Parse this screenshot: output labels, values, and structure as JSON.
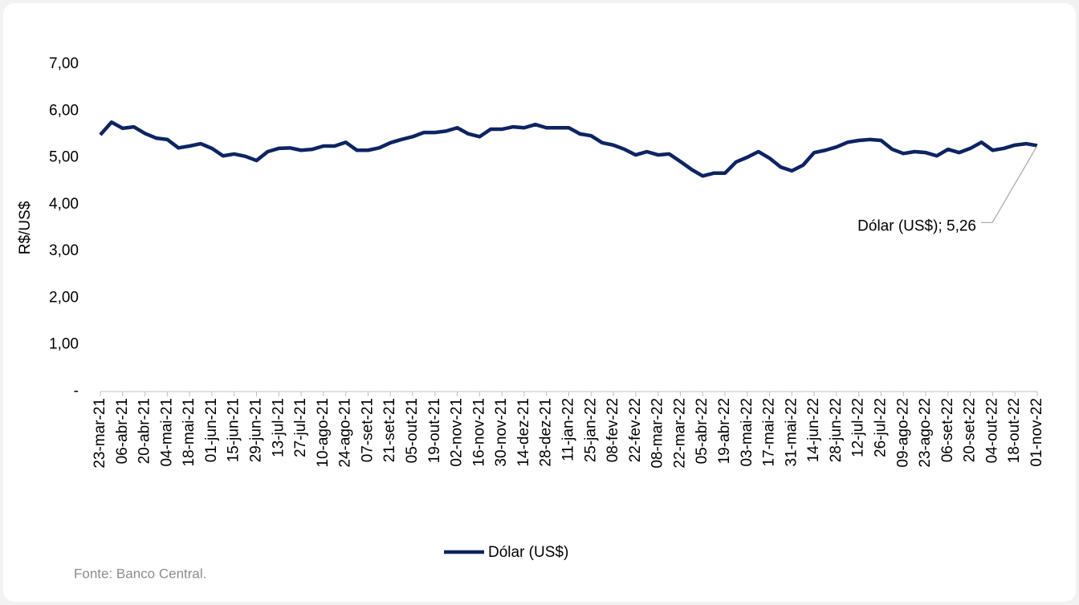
{
  "chart_data": {
    "type": "line",
    "y_label": "R$/US$",
    "source": "Fonte: Banco Central.",
    "categories": [
      "23-mar-21",
      null,
      "06-abr-21",
      null,
      "20-abr-21",
      null,
      "04-mai-21",
      null,
      "18-mai-21",
      null,
      "01-jun-21",
      null,
      "15-jun-21",
      null,
      "29-jun-21",
      null,
      "13-jul-21",
      null,
      "27-jul-21",
      null,
      "10-ago-21",
      null,
      "24-ago-21",
      null,
      "07-set-21",
      null,
      "21-set-21",
      null,
      "05-out-21",
      null,
      "19-out-21",
      null,
      "02-nov-21",
      null,
      "16-nov-21",
      null,
      "30-nov-21",
      null,
      "14-dez-21",
      null,
      "28-dez-21",
      null,
      "11-jan-22",
      null,
      "25-jan-22",
      null,
      "08-fev-22",
      null,
      "22-fev-22",
      null,
      "08-mar-22",
      null,
      "22-mar-22",
      null,
      "05-abr-22",
      null,
      "19-abr-22",
      null,
      "03-mai-22",
      null,
      "17-mai-22",
      null,
      "31-mai-22",
      null,
      "14-jun-22",
      null,
      "28-jun-22",
      null,
      "12-jul-22",
      null,
      "26-jul-22",
      null,
      "09-ago-22",
      null,
      "23-ago-22",
      null,
      "06-set-22",
      null,
      "20-set-22",
      null,
      "04-out-22",
      null,
      "18-out-22",
      null,
      "01-nov-22"
    ],
    "series": [
      {
        "name": "Dólar (US$)",
        "color": "#0d2463",
        "values": [
          5.49,
          5.76,
          5.63,
          5.66,
          5.52,
          5.42,
          5.39,
          5.21,
          5.25,
          5.3,
          5.2,
          5.04,
          5.08,
          5.03,
          4.94,
          5.13,
          5.2,
          5.21,
          5.16,
          5.18,
          5.25,
          5.25,
          5.33,
          5.16,
          5.16,
          5.21,
          5.32,
          5.39,
          5.45,
          5.54,
          5.54,
          5.57,
          5.64,
          5.51,
          5.45,
          5.61,
          5.61,
          5.66,
          5.64,
          5.71,
          5.64,
          5.64,
          5.64,
          5.51,
          5.47,
          5.32,
          5.27,
          5.18,
          5.06,
          5.13,
          5.06,
          5.08,
          4.92,
          4.75,
          4.61,
          4.67,
          4.67,
          4.91,
          5.01,
          5.13,
          4.99,
          4.8,
          4.72,
          4.84,
          5.11,
          5.16,
          5.23,
          5.33,
          5.37,
          5.39,
          5.37,
          5.18,
          5.09,
          5.13,
          5.11,
          5.04,
          5.18,
          5.11,
          5.2,
          5.33,
          5.16,
          5.2,
          5.27,
          5.3,
          5.26
        ],
        "value_labels": [
          null,
          null,
          null,
          null,
          null,
          null,
          null,
          null,
          null,
          null,
          null,
          null,
          null,
          null,
          null,
          null,
          null,
          null,
          null,
          null,
          null,
          null,
          null,
          null,
          null,
          null,
          null,
          null,
          null,
          null,
          null,
          null,
          null,
          null,
          null,
          null,
          null,
          null,
          null,
          null,
          null,
          null,
          null,
          null,
          null,
          null,
          null,
          null,
          null,
          null,
          null,
          null,
          null,
          null,
          null,
          null,
          null,
          null,
          null,
          null,
          null,
          null,
          null,
          null,
          null,
          null,
          null,
          null,
          null,
          null,
          null,
          null,
          null,
          null,
          null,
          null,
          null,
          null,
          null,
          null,
          null,
          null,
          null,
          null,
          "Dólar (US$); 5,26"
        ]
      }
    ],
    "ylim": [
      0,
      7
    ],
    "yticks": [
      {
        "value": 0,
        "label": "-"
      },
      {
        "value": 1,
        "label": "1,00"
      },
      {
        "value": 2,
        "label": "2,00"
      },
      {
        "value": 3,
        "label": "3,00"
      },
      {
        "value": 4,
        "label": "4,00"
      },
      {
        "value": 5,
        "label": "5,00"
      },
      {
        "value": 6,
        "label": "6,00"
      },
      {
        "value": 7,
        "label": "7,00"
      }
    ],
    "grid": false,
    "legend": "bottom"
  }
}
